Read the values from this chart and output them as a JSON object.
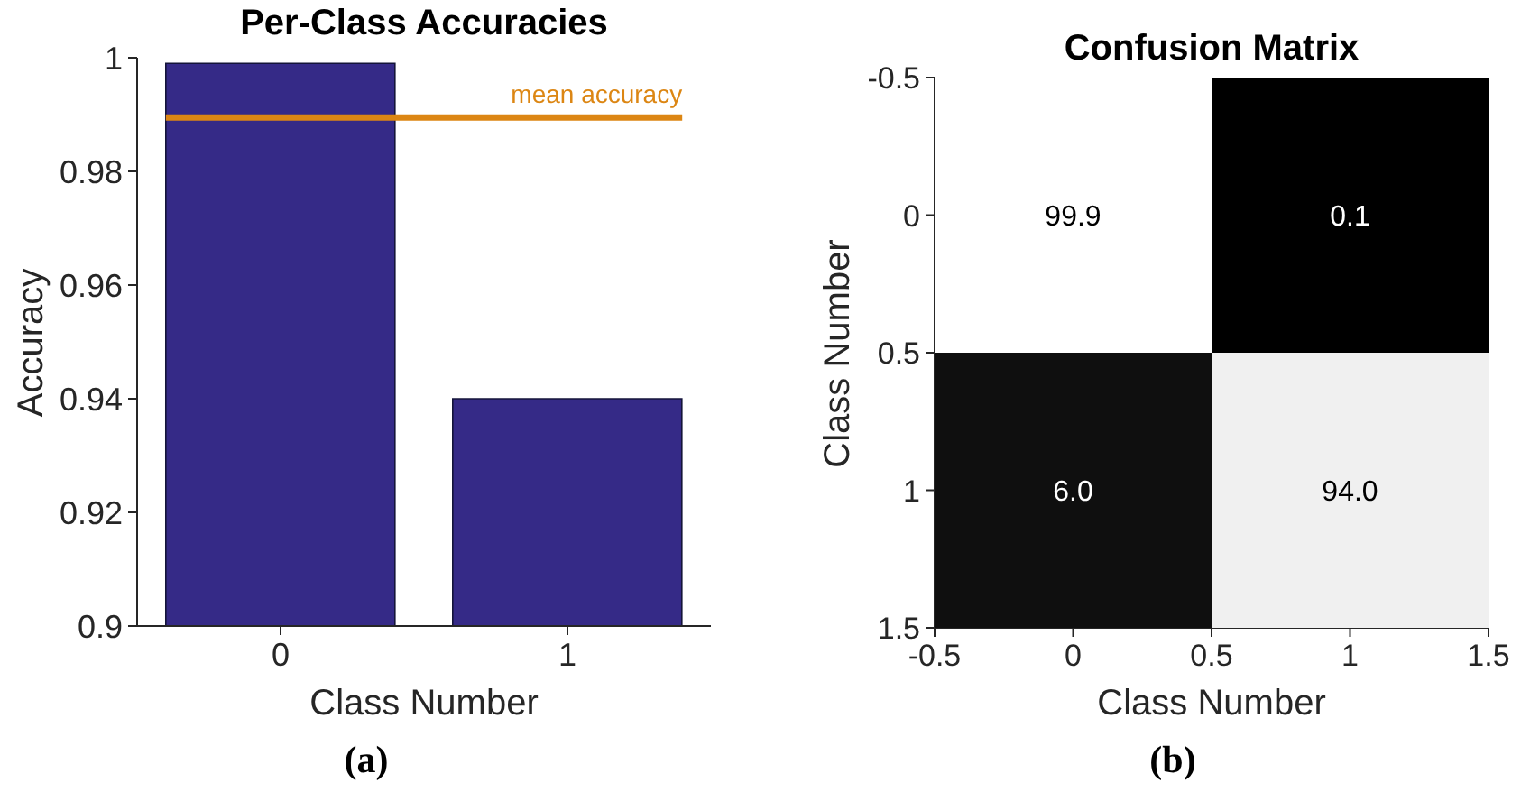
{
  "chart_data": [
    {
      "type": "bar",
      "title": "Per-Class Accuracies",
      "xlabel": "Class Number",
      "ylabel": "Accuracy",
      "categories": [
        "0",
        "1"
      ],
      "values": [
        0.999,
        0.94
      ],
      "color": "#352a87",
      "ylim": [
        0.9,
        1
      ],
      "yticks": [
        0.9,
        0.92,
        0.94,
        0.96,
        0.98,
        1
      ],
      "ref_lines": [
        {
          "axis": "y",
          "value": 0.9895,
          "label": "mean accuracy",
          "color": "#dc8613"
        }
      ],
      "annotations": [
        "(a)"
      ]
    },
    {
      "type": "heatmap",
      "title": "Confusion Matrix",
      "xlabel": "Class Number",
      "ylabel": "Class Number",
      "cells": [
        [
          99.9,
          0.1
        ],
        [
          6.0,
          94.0
        ]
      ],
      "cell_labels": [
        [
          "99.9",
          "0.1"
        ],
        [
          "6.0",
          "94.0"
        ]
      ],
      "xlim": [
        -0.5,
        1.5
      ],
      "xticks": [
        -0.5,
        0,
        0.5,
        1,
        1.5
      ],
      "ylim": [
        1.5,
        -0.5
      ],
      "yticks": [
        -0.5,
        0,
        0.5,
        1,
        1.5
      ],
      "annotations": [
        "(b)"
      ]
    }
  ]
}
